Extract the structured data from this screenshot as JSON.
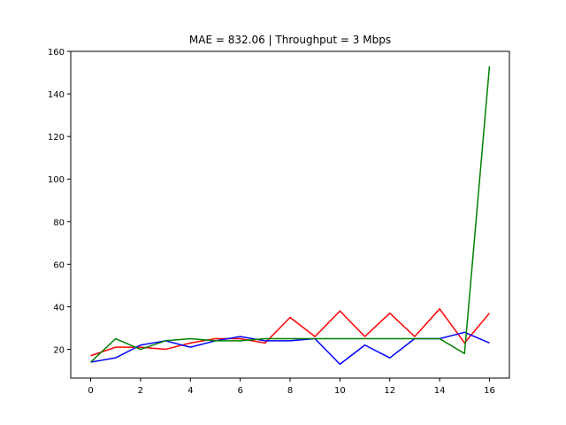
{
  "chart_data": {
    "type": "line",
    "title": "MAE = 832.06 | Throughput = 3 Mbps",
    "xlabel": "",
    "ylabel": "",
    "xlim": [
      -0.8,
      16.8
    ],
    "ylim": [
      6.5,
      160
    ],
    "xticks": [
      0,
      2,
      4,
      6,
      8,
      10,
      12,
      14,
      16
    ],
    "yticks": [
      20,
      40,
      60,
      80,
      100,
      120,
      140,
      160
    ],
    "grid": false,
    "x": [
      0,
      1,
      2,
      3,
      4,
      5,
      6,
      7,
      8,
      9,
      10,
      11,
      12,
      13,
      14,
      15,
      16
    ],
    "series": [
      {
        "color": "#ff0000",
        "values": [
          17,
          21,
          21,
          20,
          23,
          25,
          25,
          23,
          35,
          26,
          38,
          26,
          37,
          26,
          39,
          23,
          37
        ]
      },
      {
        "color": "#0000ff",
        "values": [
          14,
          16,
          22,
          24,
          21,
          24,
          26,
          24,
          24,
          25,
          13,
          22,
          16,
          25,
          25,
          28,
          23
        ]
      },
      {
        "color": "#008000",
        "values": [
          14,
          25,
          20,
          24,
          25,
          24,
          24,
          25,
          25,
          25,
          25,
          25,
          25,
          25,
          25,
          18,
          153
        ]
      }
    ]
  }
}
